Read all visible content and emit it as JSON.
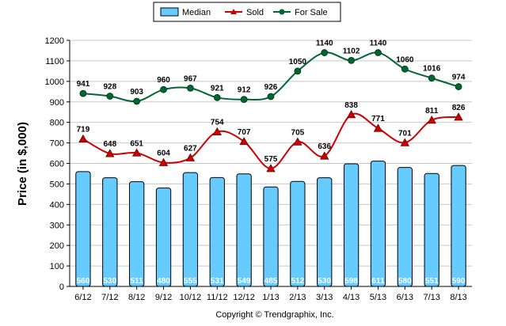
{
  "chart_data": {
    "type": "bar",
    "categories": [
      "6/12",
      "7/12",
      "8/12",
      "9/12",
      "10/12",
      "11/12",
      "12/12",
      "1/13",
      "2/13",
      "3/13",
      "4/13",
      "5/13",
      "6/13",
      "7/13",
      "8/13"
    ],
    "series": [
      {
        "name": "Median",
        "type": "bar",
        "color": "#66ccff",
        "values": [
          560,
          530,
          511,
          480,
          555,
          531,
          549,
          485,
          512,
          530,
          598,
          611,
          580,
          551,
          590
        ]
      },
      {
        "name": "Sold",
        "type": "line",
        "color": "#cc0000",
        "values": [
          719,
          648,
          651,
          604,
          627,
          754,
          707,
          575,
          705,
          636,
          838,
          771,
          701,
          811,
          826
        ]
      },
      {
        "name": "For Sale",
        "type": "line",
        "color": "#006633",
        "values": [
          941,
          928,
          903,
          960,
          967,
          921,
          912,
          926,
          1050,
          1140,
          1102,
          1140,
          1060,
          1016,
          974
        ]
      }
    ],
    "ylabel": "Price (in $,000)",
    "ylim": [
      0,
      1200
    ],
    "yticks": [
      0,
      100,
      200,
      300,
      400,
      500,
      600,
      700,
      800,
      900,
      1000,
      1100,
      1200
    ],
    "grid": true,
    "legend_position": "top-center"
  },
  "copyright": "Copyright © Trendgraphix, Inc."
}
